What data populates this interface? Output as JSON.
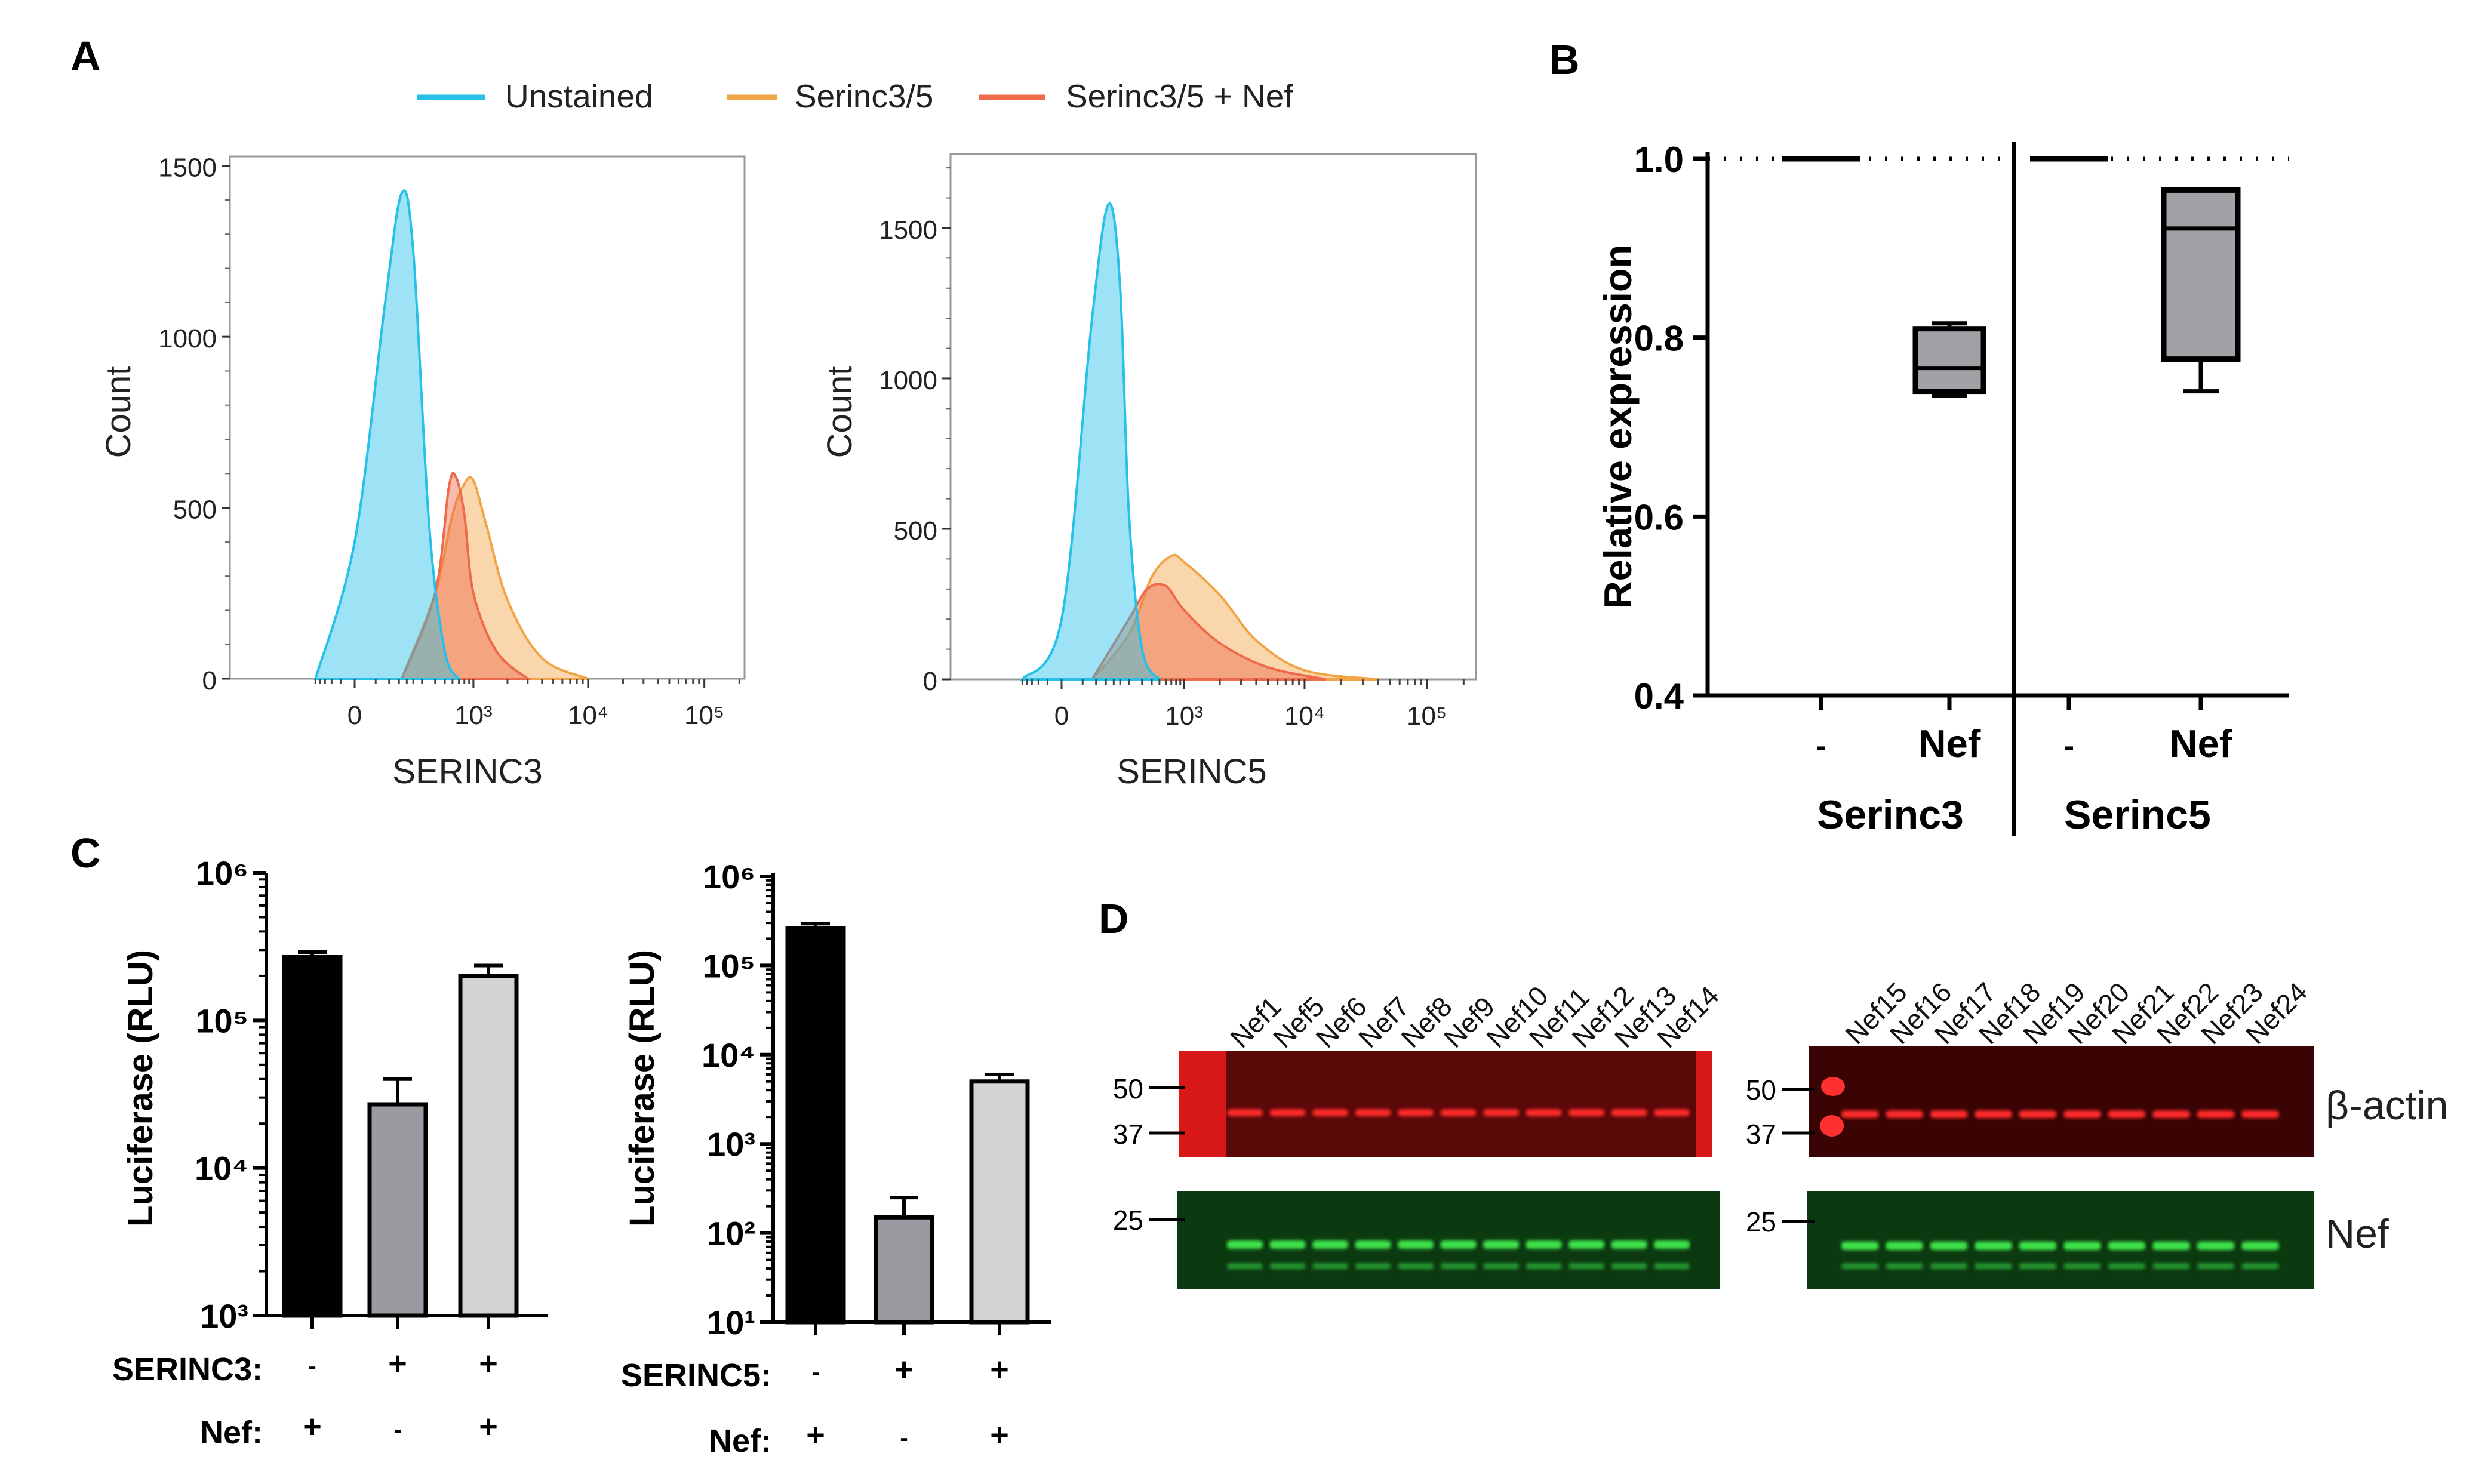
{
  "panels": {
    "a": {
      "letter": "A",
      "legend": [
        {
          "label": "Unstained",
          "color": "#27C0E8"
        },
        {
          "label": "Serinc3/5",
          "color": "#F2A548"
        },
        {
          "label": "Serinc3/5 + Nef",
          "color": "#EE6A4A"
        }
      ]
    },
    "b": {
      "letter": "B"
    },
    "c": {
      "letter": "C"
    },
    "d": {
      "letter": "D",
      "lanes_left": [
        "Nef1",
        "Nef5",
        "Nef6",
        "Nef7",
        "Nef8",
        "Nef9",
        "Nef10",
        "Nef11",
        "Nef12",
        "Nef13",
        "Nef14"
      ],
      "lanes_right": [
        "Nef15",
        "Nef16",
        "Nef17",
        "Nef18",
        "Nef19",
        "Nef20",
        "Nef21",
        "Nef22",
        "Nef23",
        "Nef24"
      ],
      "markers_top": [
        "50",
        "37"
      ],
      "markers_bottom": [
        "25"
      ],
      "blot_labels": [
        "β-actin",
        "Nef"
      ],
      "colors": {
        "actin_blot": "#5a0808",
        "actin_band": "#ff2a2a",
        "nef_blot": "#0c3a10",
        "nef_band": "#3ce24a"
      }
    }
  },
  "chart_data": [
    {
      "id": "a1",
      "type": "area",
      "xlabel": "SERINC3",
      "ylabel": "Count",
      "x_scale": "biexponential",
      "x_ticks": [
        "0",
        "10³",
        "10⁴",
        "10⁵"
      ],
      "y_ticks": [
        "0",
        "500",
        "1000",
        "1500"
      ],
      "ylim": [
        0,
        1510
      ],
      "series": [
        {
          "name": "Unstained",
          "color": "#27C0E8",
          "x": [
            -150,
            0,
            50,
            100,
            150,
            250,
            400,
            600
          ],
          "y": [
            0,
            400,
            1100,
            1420,
            1250,
            450,
            80,
            0
          ]
        },
        {
          "name": "Serinc3/5",
          "color": "#F2A548",
          "x": [
            100,
            300,
            500,
            700,
            900,
            1300,
            2000,
            4000,
            10000
          ],
          "y": [
            0,
            250,
            480,
            570,
            580,
            450,
            230,
            60,
            0
          ]
        },
        {
          "name": "Serinc3/5 + Nef",
          "color": "#EE6A4A",
          "x": [
            100,
            300,
            450,
            550,
            700,
            1000,
            1600,
            3000
          ],
          "y": [
            0,
            250,
            560,
            590,
            480,
            250,
            80,
            0
          ]
        }
      ]
    },
    {
      "id": "a2",
      "type": "area",
      "xlabel": "SERINC5",
      "ylabel": "Count",
      "x_scale": "biexponential",
      "x_ticks": [
        "0",
        "10³",
        "10⁴",
        "10⁵"
      ],
      "y_ticks": [
        "0",
        "500",
        "1000",
        "1500"
      ],
      "ylim": [
        0,
        1730
      ],
      "series": [
        {
          "name": "Unstained",
          "color": "#27C0E8",
          "x": [
            -150,
            0,
            50,
            100,
            150,
            200,
            300,
            500
          ],
          "y": [
            0,
            200,
            1200,
            1580,
            1300,
            550,
            100,
            0
          ]
        },
        {
          "name": "Serinc3/5",
          "color": "#F2A548",
          "x": [
            50,
            200,
            400,
            700,
            1000,
            2000,
            4000,
            10000,
            40000
          ],
          "y": [
            0,
            150,
            340,
            410,
            390,
            280,
            130,
            30,
            0
          ]
        },
        {
          "name": "Serinc3/5 + Nef",
          "color": "#EE6A4A",
          "x": [
            50,
            200,
            350,
            600,
            1000,
            2000,
            5000,
            15000
          ],
          "y": [
            0,
            200,
            300,
            310,
            230,
            120,
            40,
            0
          ]
        }
      ]
    },
    {
      "id": "b",
      "type": "box",
      "ylabel": "Relative expression",
      "ylim": [
        0.4,
        1.0
      ],
      "y_ticks": [
        "0.4",
        "0.6",
        "0.8",
        "1.0"
      ],
      "groups": [
        "Serinc3",
        "Serinc5"
      ],
      "categories": [
        "-",
        "Nef",
        "-",
        "Nef"
      ],
      "boxes": [
        {
          "group": "Serinc3",
          "category": "-",
          "min": 1.0,
          "q1": 1.0,
          "median": 1.0,
          "q3": 1.0,
          "max": 1.0
        },
        {
          "group": "Serinc3",
          "category": "Nef",
          "min": 0.735,
          "q1": 0.74,
          "median": 0.766,
          "q3": 0.81,
          "max": 0.816
        },
        {
          "group": "Serinc5",
          "category": "-",
          "min": 1.0,
          "q1": 1.0,
          "median": 1.0,
          "q3": 1.0,
          "max": 1.0
        },
        {
          "group": "Serinc5",
          "category": "Nef",
          "min": 0.74,
          "q1": 0.776,
          "median": 0.922,
          "q3": 0.965,
          "max": 0.965
        }
      ],
      "reference_line": 1.0
    },
    {
      "id": "c1",
      "type": "bar",
      "ylabel": "Luciferase (RLU)",
      "y_scale": "log",
      "y_ticks": [
        "10³",
        "10⁴",
        "10⁵",
        "10⁶"
      ],
      "ylim": [
        1000,
        1000000
      ],
      "values": [
        270000,
        27000,
        200000
      ],
      "errors": [
        290000,
        40000,
        235000
      ],
      "colors": [
        "#000000",
        "#9a9aa0",
        "#d4d4d6"
      ],
      "rows": [
        {
          "label": "SERINC3:",
          "marks": [
            "-",
            "+",
            "+"
          ]
        },
        {
          "label": "Nef:",
          "marks": [
            "+",
            "-",
            "+"
          ]
        }
      ]
    },
    {
      "id": "c2",
      "type": "bar",
      "ylabel": "Luciferase (RLU)",
      "y_scale": "log",
      "y_ticks": [
        "10¹",
        "10²",
        "10³",
        "10⁴",
        "10⁵",
        "10⁶"
      ],
      "ylim": [
        10,
        1000000
      ],
      "values": [
        260000,
        150,
        5000
      ],
      "errors": [
        295000,
        250,
        6000
      ],
      "colors": [
        "#000000",
        "#9a9aa0",
        "#d4d4d6"
      ],
      "rows": [
        {
          "label": "SERINC5:",
          "marks": [
            "-",
            "+",
            "+"
          ]
        },
        {
          "label": "Nef:",
          "marks": [
            "+",
            "-",
            "+"
          ]
        }
      ]
    }
  ]
}
